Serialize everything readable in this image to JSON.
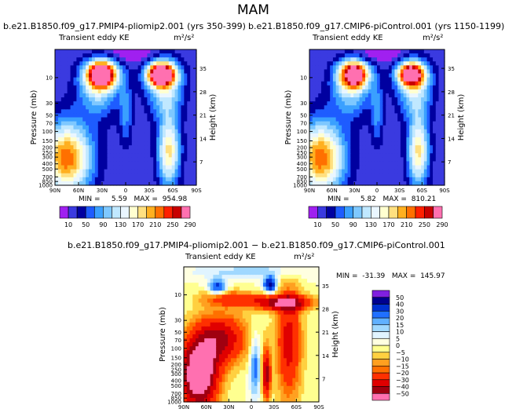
{
  "page": {
    "title": "MAM"
  },
  "chart_data": [
    {
      "type": "heatmap",
      "title": "b.e21.B1850.f09_g17.PMIP4-pliomip2.001  (yrs 350-399)",
      "subtitle_left": "Transient eddy KE",
      "units": "m²/s²",
      "ylabel": "Pressure (mb)",
      "ylabel_right": "Height (km)",
      "x_ticks": [
        "90N",
        "60N",
        "30N",
        "0",
        "30S",
        "60S",
        "90S"
      ],
      "y_ticks": [
        "10",
        "30",
        "50",
        "70",
        "100",
        "150",
        "200",
        "250",
        "300",
        "400",
        "500",
        "700",
        "850",
        "1000"
      ],
      "y_right_ticks": [
        "35",
        "28",
        "21",
        "14",
        "7"
      ],
      "xlim": [
        90,
        -90
      ],
      "ylim_mb": [
        1000,
        3
      ],
      "stats": "MIN =     5.59   MAX =  954.98",
      "colorbar": {
        "orientation": "horizontal",
        "levels": [
          "10",
          "50",
          "90",
          "130",
          "170",
          "210",
          "250",
          "290"
        ],
        "colors": [
          "#a020f0",
          "#3a3ae0",
          "#0000a0",
          "#1e5cff",
          "#3aa0ff",
          "#7ec8ff",
          "#c0e8ff",
          "#eaf6ff",
          "#ffffd0",
          "#ffe080",
          "#ffb020",
          "#ff7000",
          "#ff2000",
          "#c80000",
          "#ff70b0"
        ]
      }
    },
    {
      "type": "heatmap",
      "title": "b.e21.B1850.f09_g17.CMIP6-piControl.001  (yrs 1150-1199)",
      "subtitle_left": "Transient eddy KE",
      "units": "m²/s²",
      "ylabel": "Pressure (mb)",
      "ylabel_right": "Height (km)",
      "x_ticks": [
        "90N",
        "60N",
        "30N",
        "0",
        "30S",
        "60S",
        "90S"
      ],
      "y_ticks": [
        "10",
        "30",
        "50",
        "70",
        "100",
        "150",
        "200",
        "250",
        "300",
        "400",
        "500",
        "700",
        "850",
        "1000"
      ],
      "y_right_ticks": [
        "35",
        "28",
        "21",
        "14",
        "7"
      ],
      "xlim": [
        90,
        -90
      ],
      "ylim_mb": [
        1000,
        3
      ],
      "stats": "MIN =     5.82   MAX =  810.21",
      "colorbar": {
        "orientation": "horizontal",
        "levels": [
          "10",
          "50",
          "90",
          "130",
          "170",
          "210",
          "250",
          "290"
        ],
        "colors": [
          "#a020f0",
          "#3a3ae0",
          "#0000a0",
          "#1e5cff",
          "#3aa0ff",
          "#7ec8ff",
          "#c0e8ff",
          "#eaf6ff",
          "#ffffd0",
          "#ffe080",
          "#ffb020",
          "#ff7000",
          "#ff2000",
          "#c80000",
          "#ff70b0"
        ]
      }
    },
    {
      "type": "heatmap",
      "title": "b.e21.B1850.f09_g17.PMIP4-pliomip2.001 − b.e21.B1850.f09_g17.CMIP6-piControl.001",
      "subtitle_left": "Transient eddy KE",
      "units": "m²/s²",
      "ylabel": "Pressure (mb)",
      "ylabel_right": "Height (km)",
      "x_ticks": [
        "90N",
        "60N",
        "30N",
        "0",
        "30S",
        "60S",
        "90S"
      ],
      "y_ticks": [
        "10",
        "30",
        "50",
        "70",
        "100",
        "150",
        "200",
        "250",
        "300",
        "400",
        "500",
        "700",
        "850",
        "1000"
      ],
      "y_right_ticks": [
        "35",
        "28",
        "21",
        "14",
        "7"
      ],
      "xlim": [
        90,
        -90
      ],
      "ylim_mb": [
        1000,
        3
      ],
      "stats": "MIN =  -31.39   MAX =  145.97",
      "colorbar": {
        "orientation": "vertical",
        "levels": [
          "50",
          "40",
          "30",
          "20",
          "15",
          "10",
          "5",
          "0",
          "−5",
          "−10",
          "−15",
          "−20",
          "−30",
          "−40",
          "−50"
        ],
        "colors": [
          "#ff70b0",
          "#a00010",
          "#e00000",
          "#ff3000",
          "#ff7000",
          "#ffa020",
          "#ffd040",
          "#ffff90",
          "#ffffe0",
          "#e0f4ff",
          "#a0d8ff",
          "#60b0ff",
          "#2070ff",
          "#0030d0",
          "#000090",
          "#8020e0"
        ]
      }
    }
  ]
}
